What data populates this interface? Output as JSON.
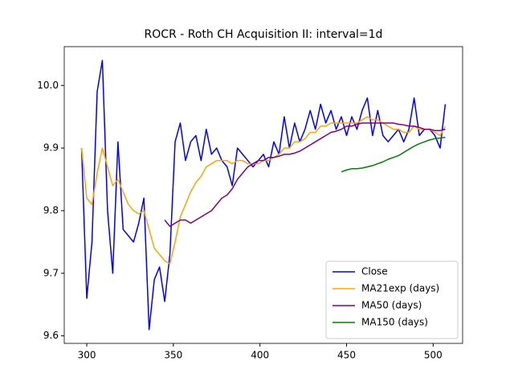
{
  "chart_data": {
    "type": "line",
    "title": "ROCR - Roth CH Acquisition II: interval=1d",
    "x": [
      297,
      300,
      303,
      306,
      309,
      312,
      315,
      318,
      321,
      324,
      327,
      330,
      333,
      336,
      339,
      342,
      345,
      348,
      351,
      354,
      357,
      360,
      363,
      366,
      369,
      372,
      375,
      378,
      381,
      384,
      387,
      390,
      393,
      396,
      399,
      402,
      405,
      408,
      411,
      414,
      417,
      420,
      423,
      426,
      429,
      432,
      435,
      438,
      441,
      444,
      447,
      450,
      453,
      456,
      459,
      462,
      465,
      468,
      471,
      474,
      477,
      480,
      483,
      486,
      489,
      492,
      495,
      498,
      501,
      504,
      507
    ],
    "series": [
      {
        "name": "Close",
        "color": "#0000ff",
        "values": [
          9.9,
          9.66,
          9.75,
          9.99,
          10.04,
          9.8,
          9.7,
          9.91,
          9.77,
          9.76,
          9.75,
          9.78,
          9.82,
          9.61,
          9.69,
          9.71,
          9.655,
          9.73,
          9.91,
          9.94,
          9.88,
          9.91,
          9.92,
          9.88,
          9.93,
          9.89,
          9.9,
          9.88,
          9.87,
          9.84,
          9.9,
          9.89,
          9.88,
          9.87,
          9.88,
          9.89,
          9.87,
          9.91,
          9.89,
          9.95,
          9.9,
          9.94,
          9.91,
          9.93,
          9.96,
          9.93,
          9.97,
          9.94,
          9.96,
          9.93,
          9.95,
          9.92,
          9.95,
          9.93,
          9.96,
          9.98,
          9.92,
          9.96,
          9.92,
          9.91,
          9.92,
          9.93,
          9.91,
          9.93,
          9.98,
          9.92,
          9.93,
          9.93,
          9.92,
          9.9,
          9.97
        ]
      },
      {
        "name": "MA21exp (days)",
        "color": "#ffa500",
        "values": [
          9.9,
          9.82,
          9.81,
          9.86,
          9.9,
          9.87,
          9.84,
          9.85,
          9.83,
          9.81,
          9.8,
          9.795,
          9.8,
          9.77,
          9.74,
          9.73,
          9.72,
          9.715,
          9.75,
          9.79,
          9.81,
          9.83,
          9.845,
          9.855,
          9.87,
          9.875,
          9.88,
          9.88,
          9.88,
          9.875,
          9.88,
          9.88,
          9.875,
          9.875,
          9.875,
          9.88,
          9.88,
          9.885,
          9.89,
          9.9,
          9.9,
          9.91,
          9.91,
          9.915,
          9.925,
          9.925,
          9.935,
          9.935,
          9.94,
          9.94,
          9.94,
          9.94,
          9.94,
          9.94,
          9.945,
          9.95,
          9.945,
          9.945,
          9.94,
          9.935,
          9.93,
          9.93,
          9.925,
          9.925,
          9.935,
          9.93,
          9.93,
          9.93,
          9.925,
          9.92,
          9.935
        ]
      },
      {
        "name": "MA50 (days)",
        "color": "#800080",
        "values": [
          null,
          null,
          null,
          null,
          null,
          null,
          null,
          null,
          null,
          null,
          null,
          null,
          null,
          null,
          null,
          null,
          9.785,
          9.775,
          9.78,
          9.785,
          9.785,
          9.78,
          9.785,
          9.79,
          9.795,
          9.8,
          9.81,
          9.82,
          9.825,
          9.835,
          9.85,
          9.86,
          9.87,
          9.875,
          9.88,
          9.88,
          9.885,
          9.885,
          9.887,
          9.89,
          9.89,
          9.892,
          9.895,
          9.9,
          9.905,
          9.91,
          9.915,
          9.92,
          9.925,
          9.927,
          9.93,
          9.935,
          9.935,
          9.938,
          9.94,
          9.94,
          9.94,
          9.94,
          9.94,
          9.94,
          9.94,
          9.938,
          9.937,
          9.935,
          9.935,
          9.933,
          9.93,
          9.93,
          9.928,
          9.928,
          9.93
        ]
      },
      {
        "name": "MA150 (days)",
        "color": "#008000",
        "values": [
          null,
          null,
          null,
          null,
          null,
          null,
          null,
          null,
          null,
          null,
          null,
          null,
          null,
          null,
          null,
          null,
          null,
          null,
          null,
          null,
          null,
          null,
          null,
          null,
          null,
          null,
          null,
          null,
          null,
          null,
          null,
          null,
          null,
          null,
          null,
          null,
          null,
          null,
          null,
          null,
          null,
          null,
          null,
          null,
          null,
          null,
          null,
          null,
          null,
          null,
          9.862,
          9.865,
          9.867,
          9.867,
          9.868,
          9.87,
          9.872,
          9.875,
          9.878,
          9.882,
          9.885,
          9.888,
          9.893,
          9.898,
          9.903,
          9.907,
          9.91,
          9.913,
          9.915,
          9.916,
          9.917
        ]
      }
    ],
    "xlim": [
      287,
      517
    ],
    "xticks": [
      300,
      350,
      400,
      450,
      500
    ],
    "ylim": [
      9.588,
      10.062
    ],
    "yticks": [
      9.6,
      9.7,
      9.8,
      9.9,
      {
        "value": 10,
        "label": "10.0"
      }
    ],
    "legend": "lower right"
  }
}
